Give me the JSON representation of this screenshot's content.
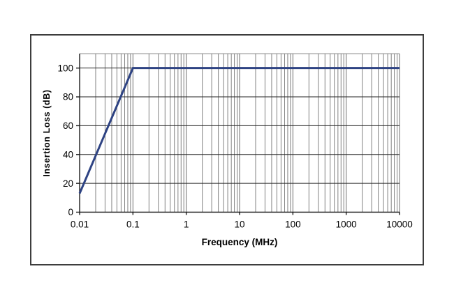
{
  "page": {
    "background": "#ffffff"
  },
  "chart_data": {
    "type": "line",
    "title": "",
    "xlabel": "Frequency (MHz)",
    "ylabel": "Insertion Loss (dB)",
    "x_scale": "log",
    "y_scale": "linear",
    "xlim": [
      0.01,
      10000
    ],
    "ylim": [
      0,
      110
    ],
    "x_ticks": [
      0.01,
      0.1,
      1,
      10,
      100,
      1000,
      10000
    ],
    "x_tick_labels": [
      "0.01",
      "0.1",
      "1",
      "10",
      "100",
      "1000",
      "10000"
    ],
    "y_ticks": [
      0,
      20,
      40,
      60,
      80,
      100
    ],
    "y_tick_labels": [
      "0",
      "20",
      "40",
      "60",
      "80",
      "100"
    ],
    "grid": {
      "horizontal": "major-only",
      "vertical": "log-major-and-minor",
      "legend": "none"
    },
    "series": [
      {
        "name": "Insertion Loss",
        "color": "#2E4383",
        "width": 3,
        "points": [
          [
            0.01,
            13
          ],
          [
            0.1,
            100
          ],
          [
            10000,
            100
          ]
        ]
      }
    ],
    "colors": {
      "grid_minor_v": "#828282",
      "grid_major_v": "#6e6e6e",
      "grid_major_h": "#262626",
      "axis": "#1a1a1a",
      "plot_top_border": "#8c8c8c",
      "frame_border": "#3d3d3d",
      "text": "#000000"
    }
  }
}
